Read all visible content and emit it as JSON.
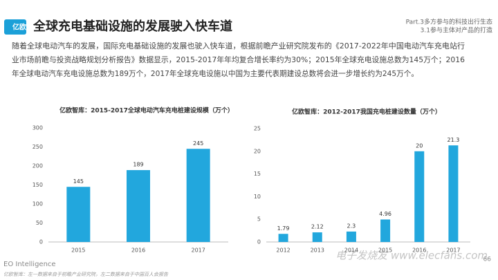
{
  "header": {
    "logo": "亿欧",
    "title": "全球充电基础设施的发展驶入快车道",
    "section": "Part.3多方参与的科技出行生态",
    "subsection": "3.1参与主体对产品的打造"
  },
  "paragraph": [
    "随着全球电动汽车的发展，国际充电基础设施的发展也驶入快车道，根据前瞻产业研究院发布的《2017-2022年中国电动汽车充电站行",
    "业市场前瞻与投资战略规划分析报告》数据显示，2015-2017年年均复合增长率约为30%；2015年全球充电设施总数为145万个；2016",
    "年全球电动汽车充电设施总数为189万个，2017年全球充电设施以中国为主要代表期建设总数将会进一步增长约为245万个。"
  ],
  "chart_data": [
    {
      "type": "bar",
      "title": "亿欧智库：2015-2017全球电动汽车充电桩建设规模（万个）",
      "categories": [
        "2015",
        "2016",
        "2017"
      ],
      "values": [
        145,
        189,
        245
      ],
      "color": "#22a7dd",
      "ylim": [
        0,
        300
      ],
      "yticks": [
        0,
        50,
        100,
        150,
        200,
        250,
        300
      ],
      "grid": false
    },
    {
      "type": "bar",
      "title": "亿欧智库：2012-2017我国充电桩建设数量（万个）",
      "categories": [
        "2012",
        "2013",
        "2014",
        "2015",
        "2016",
        "2017"
      ],
      "values": [
        1.79,
        2.12,
        2.3,
        4.96,
        20,
        21.3
      ],
      "color": "#22a7dd",
      "ylim": [
        0,
        25
      ],
      "yticks": [
        0,
        5,
        10,
        15,
        20,
        25
      ],
      "grid": false
    }
  ],
  "footer": {
    "brand": "EO Intelligence",
    "source": "亿欧智库：左一数据来自于前瞻产业研究院，左二数据来自于中国百人会报告",
    "page": "66",
    "watermark": "电子发烧友 www.elecfans.com"
  }
}
